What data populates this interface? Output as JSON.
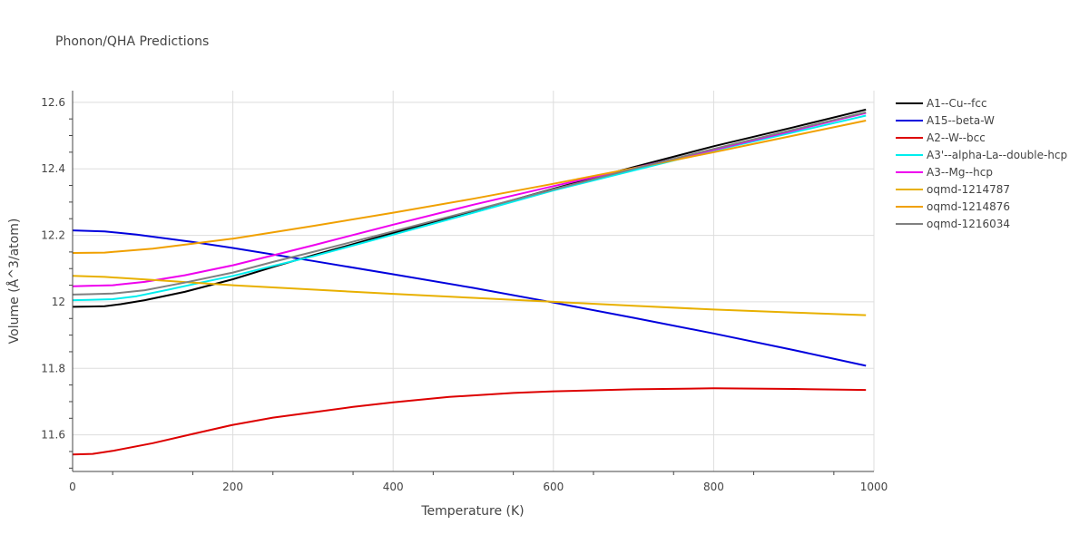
{
  "chart_data": {
    "type": "line",
    "title": "Phonon/QHA Predictions",
    "xlabel": "Temperature (K)",
    "ylabel": "Volume (Å^3/atom)",
    "xlim": [
      0,
      1000
    ],
    "ylim": [
      11.49,
      12.635
    ],
    "xticks": [
      0,
      200,
      400,
      600,
      800,
      1000
    ],
    "yticks": [
      11.6,
      11.8,
      12.0,
      12.2,
      12.4,
      12.6
    ],
    "ytick_labels": [
      "11.6",
      "11.8",
      "12",
      "12.2",
      "12.4",
      "12.6"
    ],
    "grid": true,
    "legend": "right",
    "series": [
      {
        "name": "A1--Cu--fcc",
        "color": "#000000",
        "x": [
          0,
          20,
          40,
          60,
          90,
          140,
          200,
          250,
          300,
          400,
          500,
          600,
          700,
          800,
          900,
          990
        ],
        "y": [
          11.985,
          11.986,
          11.987,
          11.993,
          12.005,
          12.03,
          12.068,
          12.105,
          12.14,
          12.207,
          12.273,
          12.34,
          12.405,
          12.468,
          12.525,
          12.578
        ]
      },
      {
        "name": "A15--beta-W",
        "color": "#0000dd",
        "x": [
          0,
          40,
          80,
          150,
          200,
          300,
          400,
          500,
          600,
          700,
          800,
          900,
          990
        ],
        "y": [
          12.215,
          12.212,
          12.202,
          12.18,
          12.162,
          12.123,
          12.083,
          12.042,
          11.998,
          11.952,
          11.905,
          11.855,
          11.808
        ]
      },
      {
        "name": "A2--W--bcc",
        "color": "#dd0000",
        "x": [
          0,
          25,
          50,
          100,
          150,
          200,
          250,
          300,
          350,
          400,
          470,
          550,
          600,
          700,
          800,
          900,
          990
        ],
        "y": [
          11.541,
          11.543,
          11.552,
          11.575,
          11.603,
          11.63,
          11.652,
          11.668,
          11.684,
          11.698,
          11.714,
          11.726,
          11.731,
          11.737,
          11.74,
          11.738,
          11.735
        ]
      },
      {
        "name": "A3'--alpha-La--double-hcp",
        "color": "#00eeee",
        "x": [
          0,
          20,
          50,
          80,
          120,
          160,
          200,
          250,
          300,
          400,
          500,
          600,
          700,
          800,
          900,
          990
        ],
        "y": [
          12.005,
          12.006,
          12.008,
          12.017,
          12.037,
          12.058,
          12.078,
          12.108,
          12.137,
          12.202,
          12.268,
          12.335,
          12.395,
          12.455,
          12.51,
          12.56
        ]
      },
      {
        "name": "A3--Mg--hcp",
        "color": "#ee00ee",
        "x": [
          0,
          20,
          50,
          90,
          140,
          200,
          250,
          300,
          400,
          500,
          600,
          700,
          800,
          900,
          990
        ],
        "y": [
          12.047,
          12.048,
          12.05,
          12.06,
          12.08,
          12.11,
          12.14,
          12.17,
          12.232,
          12.292,
          12.348,
          12.402,
          12.457,
          12.515,
          12.568
        ]
      },
      {
        "name": "oqmd-1214787",
        "color": "#e8b000",
        "x": [
          0,
          40,
          100,
          200,
          300,
          400,
          500,
          600,
          700,
          800,
          900,
          990
        ],
        "y": [
          12.078,
          12.075,
          12.066,
          12.05,
          12.037,
          12.024,
          12.012,
          12.0,
          11.988,
          11.977,
          11.968,
          11.96
        ]
      },
      {
        "name": "oqmd-1214876",
        "color": "#f0a000",
        "x": [
          0,
          40,
          100,
          150,
          200,
          300,
          400,
          500,
          600,
          700,
          800,
          900,
          990
        ],
        "y": [
          12.147,
          12.148,
          12.16,
          12.175,
          12.19,
          12.228,
          12.268,
          12.31,
          12.355,
          12.402,
          12.45,
          12.5,
          12.545
        ]
      },
      {
        "name": "oqmd-1216034",
        "color": "#808080",
        "x": [
          0,
          20,
          50,
          90,
          140,
          200,
          250,
          300,
          400,
          500,
          600,
          700,
          800,
          900,
          990
        ],
        "y": [
          12.022,
          12.023,
          12.025,
          12.035,
          12.058,
          12.088,
          12.12,
          12.15,
          12.212,
          12.275,
          12.338,
          12.4,
          12.46,
          12.518,
          12.57
        ]
      }
    ]
  }
}
